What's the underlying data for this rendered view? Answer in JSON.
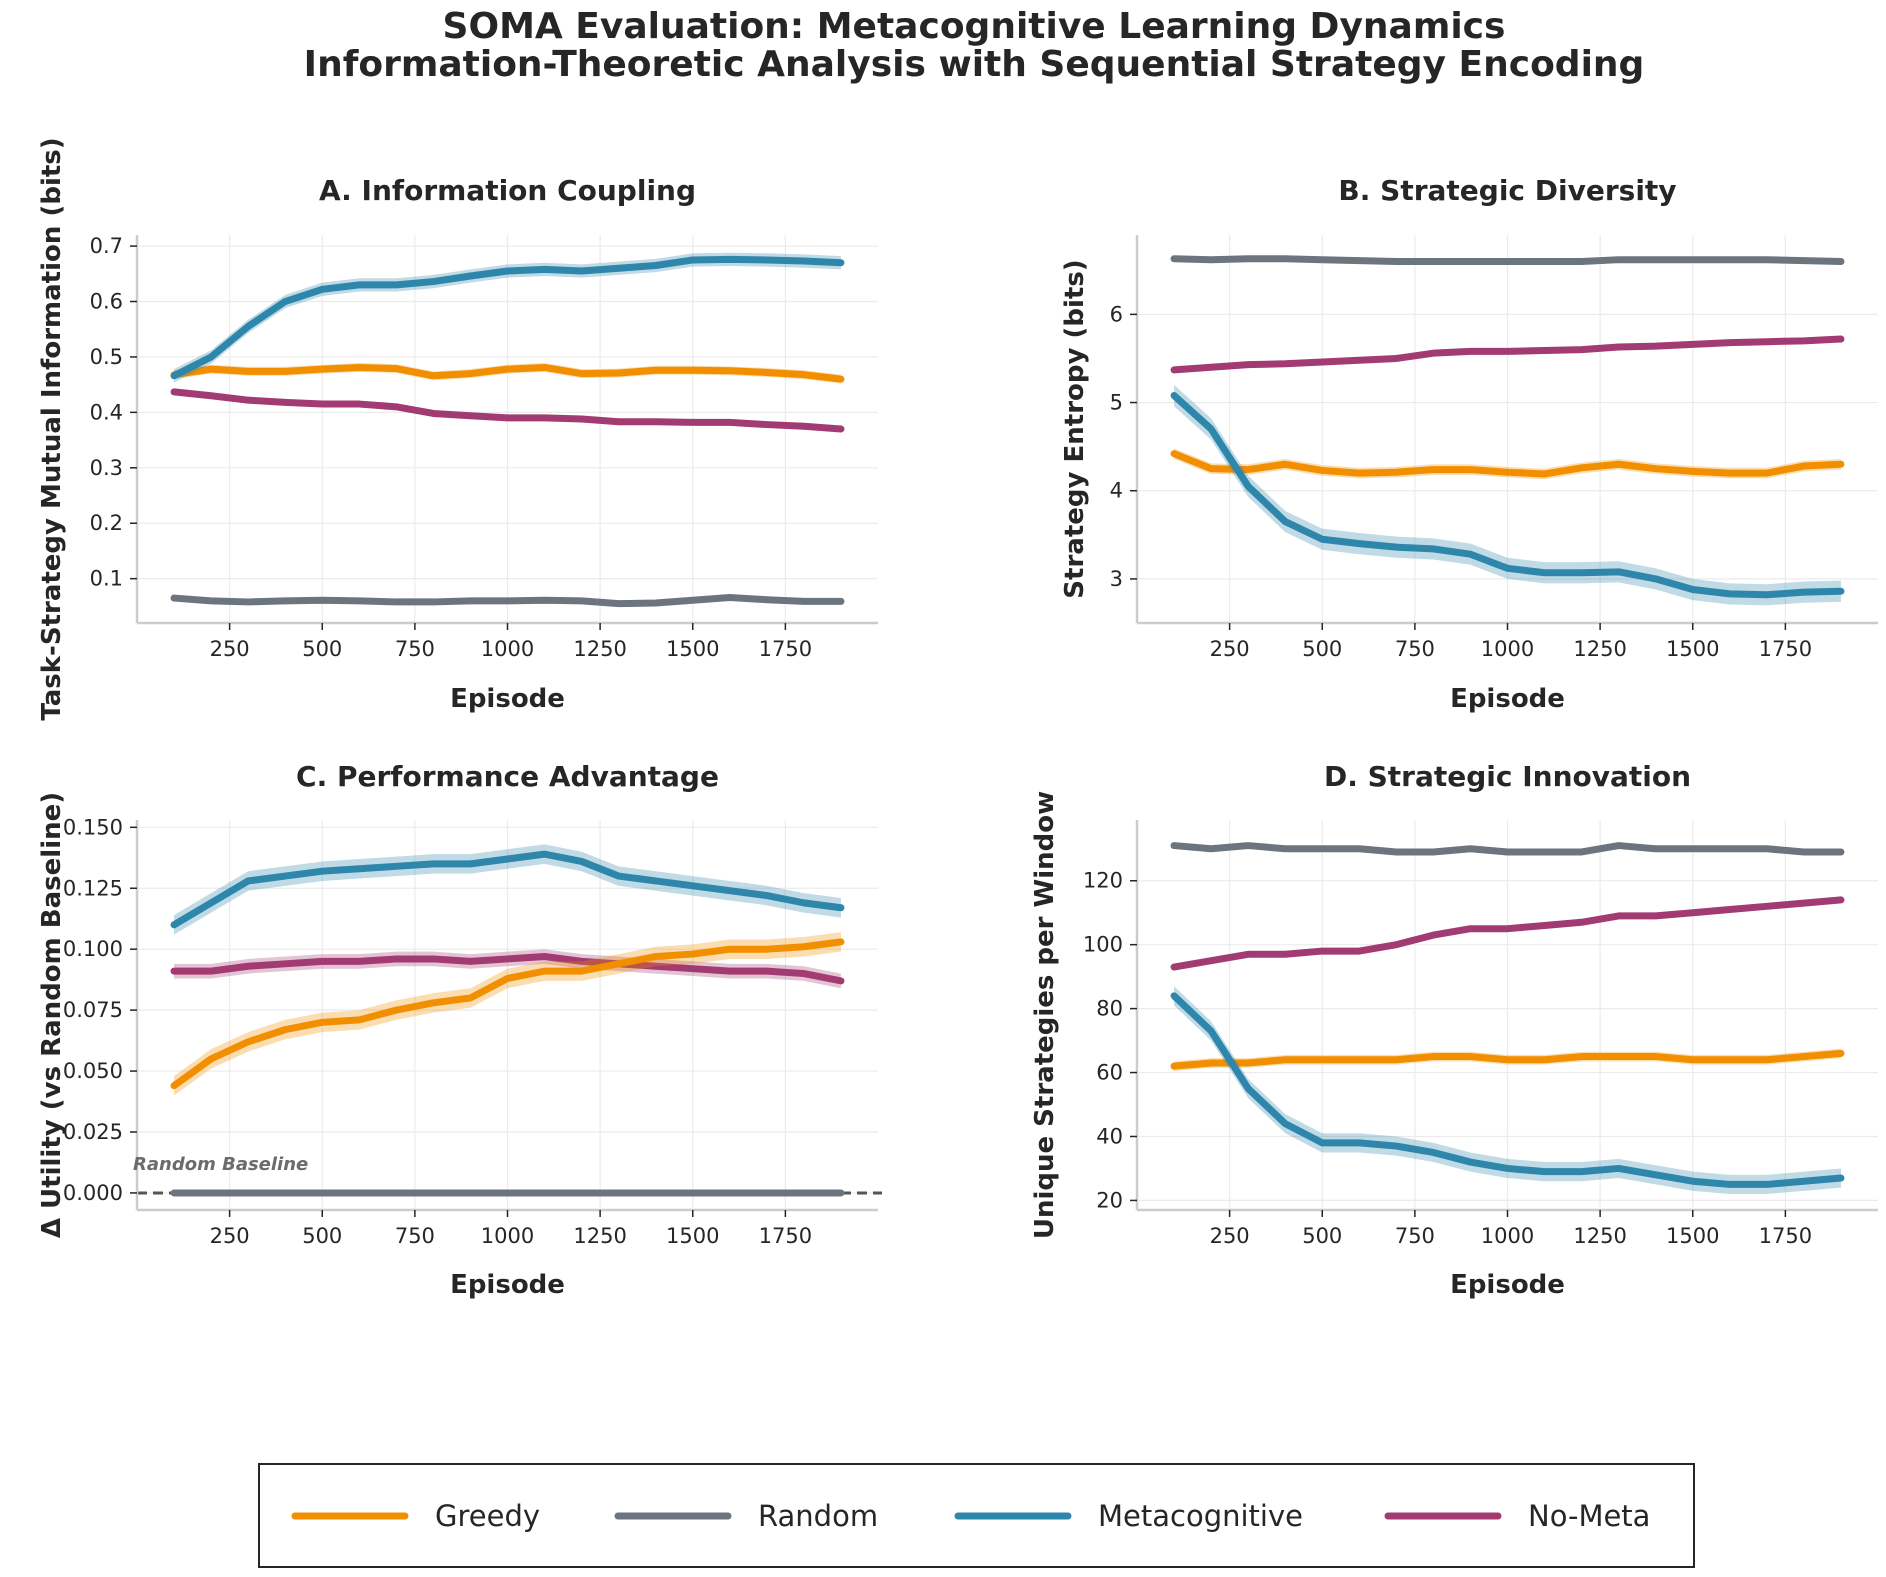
{
  "figure": {
    "title_line1": "SOMA Evaluation: Metacognitive Learning Dynamics",
    "title_line2": "Information-Theoretic Analysis with Sequential Strategy Encoding"
  },
  "legend": {
    "placement": "bottom-center",
    "entries": [
      {
        "name": "Greedy",
        "color": "#f18f01"
      },
      {
        "name": "Random",
        "color": "#6c757d"
      },
      {
        "name": "Metacognitive",
        "color": "#2e86ab"
      },
      {
        "name": "No-Meta",
        "color": "#a23b72"
      }
    ]
  },
  "chart_data": [
    {
      "type": "line",
      "title": "A. Information Coupling",
      "xlabel": "Episode",
      "ylabel": "Task-Strategy Mutual Information (bits)",
      "xlim": [
        0,
        2000
      ],
      "ylim": [
        0.02,
        0.72
      ],
      "xticks": [
        "250",
        "500",
        "750",
        "1000",
        "1250",
        "1500",
        "1750"
      ],
      "xtick_values": [
        250,
        500,
        750,
        1000,
        1250,
        1500,
        1750
      ],
      "yticks": [
        "0.1",
        "0.2",
        "0.3",
        "0.4",
        "0.5",
        "0.6",
        "0.7"
      ],
      "ytick_values": [
        0.1,
        0.2,
        0.3,
        0.4,
        0.5,
        0.6,
        0.7
      ],
      "grid": true,
      "x": [
        100,
        200,
        300,
        400,
        500,
        600,
        700,
        800,
        900,
        1000,
        1100,
        1200,
        1300,
        1400,
        1500,
        1600,
        1700,
        1800,
        1900
      ],
      "series": [
        {
          "name": "Greedy",
          "color": "#f18f01",
          "band": 0.008,
          "values": [
            0.468,
            0.478,
            0.474,
            0.474,
            0.478,
            0.481,
            0.479,
            0.466,
            0.47,
            0.478,
            0.481,
            0.47,
            0.471,
            0.476,
            0.476,
            0.475,
            0.472,
            0.468,
            0.46
          ]
        },
        {
          "name": "Random",
          "color": "#6c757d",
          "band": 0.004,
          "values": [
            0.065,
            0.06,
            0.058,
            0.06,
            0.061,
            0.06,
            0.058,
            0.058,
            0.06,
            0.06,
            0.061,
            0.06,
            0.055,
            0.056,
            0.061,
            0.066,
            0.062,
            0.059,
            0.059
          ]
        },
        {
          "name": "Metacognitive",
          "color": "#2e86ab",
          "band": 0.012,
          "values": [
            0.466,
            0.5,
            0.555,
            0.6,
            0.622,
            0.63,
            0.63,
            0.636,
            0.646,
            0.655,
            0.658,
            0.655,
            0.66,
            0.665,
            0.675,
            0.676,
            0.675,
            0.673,
            0.67
          ]
        },
        {
          "name": "No-Meta",
          "color": "#a23b72",
          "band": 0.004,
          "values": [
            0.437,
            0.43,
            0.422,
            0.418,
            0.415,
            0.415,
            0.41,
            0.398,
            0.394,
            0.39,
            0.39,
            0.388,
            0.383,
            0.383,
            0.382,
            0.382,
            0.378,
            0.375,
            0.37
          ]
        }
      ]
    },
    {
      "type": "line",
      "title": "B. Strategic Diversity",
      "xlabel": "Episode",
      "ylabel": "Strategy Entropy (bits)",
      "xlim": [
        0,
        2000
      ],
      "ylim": [
        2.5,
        6.9
      ],
      "xticks": [
        "250",
        "500",
        "750",
        "1000",
        "1250",
        "1500",
        "1750"
      ],
      "xtick_values": [
        250,
        500,
        750,
        1000,
        1250,
        1500,
        1750
      ],
      "yticks": [
        "3",
        "4",
        "5",
        "6"
      ],
      "ytick_values": [
        3,
        4,
        5,
        6
      ],
      "grid": true,
      "x": [
        100,
        200,
        300,
        400,
        500,
        600,
        700,
        800,
        900,
        1000,
        1100,
        1200,
        1300,
        1400,
        1500,
        1600,
        1700,
        1800,
        1900
      ],
      "series": [
        {
          "name": "Greedy",
          "color": "#f18f01",
          "band": 0.06,
          "values": [
            4.42,
            4.25,
            4.24,
            4.3,
            4.23,
            4.2,
            4.21,
            4.24,
            4.24,
            4.21,
            4.19,
            4.26,
            4.3,
            4.25,
            4.22,
            4.2,
            4.2,
            4.28,
            4.3
          ]
        },
        {
          "name": "Random",
          "color": "#6c757d",
          "band": 0.02,
          "values": [
            6.63,
            6.62,
            6.63,
            6.63,
            6.62,
            6.61,
            6.6,
            6.6,
            6.6,
            6.6,
            6.6,
            6.6,
            6.62,
            6.62,
            6.62,
            6.62,
            6.62,
            6.61,
            6.6
          ]
        },
        {
          "name": "Metacognitive",
          "color": "#2e86ab",
          "band": 0.12,
          "values": [
            5.08,
            4.7,
            4.05,
            3.65,
            3.45,
            3.4,
            3.36,
            3.34,
            3.28,
            3.12,
            3.07,
            3.07,
            3.08,
            3.0,
            2.88,
            2.83,
            2.82,
            2.85,
            2.86
          ]
        },
        {
          "name": "No-Meta",
          "color": "#a23b72",
          "band": 0.02,
          "values": [
            5.37,
            5.4,
            5.43,
            5.44,
            5.46,
            5.48,
            5.5,
            5.56,
            5.58,
            5.58,
            5.59,
            5.6,
            5.63,
            5.64,
            5.66,
            5.68,
            5.69,
            5.7,
            5.72
          ]
        }
      ]
    },
    {
      "type": "line",
      "title": "C. Performance Advantage",
      "xlabel": "Episode",
      "ylabel": "Δ Utility (vs Random Baseline)",
      "xlim": [
        0,
        2000
      ],
      "ylim": [
        -0.007,
        0.153
      ],
      "xticks": [
        "250",
        "500",
        "750",
        "1000",
        "1250",
        "1500",
        "1750"
      ],
      "xtick_values": [
        250,
        500,
        750,
        1000,
        1250,
        1500,
        1750
      ],
      "yticks": [
        "0.000",
        "0.025",
        "0.050",
        "0.075",
        "0.100",
        "0.125",
        "0.150"
      ],
      "ytick_values": [
        0,
        0.025,
        0.05,
        0.075,
        0.1,
        0.125,
        0.15
      ],
      "grid": true,
      "annotation": "Random Baseline",
      "baseline": 0,
      "x": [
        100,
        200,
        300,
        400,
        500,
        600,
        700,
        800,
        900,
        1000,
        1100,
        1200,
        1300,
        1400,
        1500,
        1600,
        1700,
        1800,
        1900
      ],
      "series": [
        {
          "name": "Greedy",
          "color": "#f18f01",
          "band": 0.004,
          "values": [
            0.044,
            0.055,
            0.062,
            0.067,
            0.07,
            0.071,
            0.075,
            0.078,
            0.08,
            0.088,
            0.091,
            0.091,
            0.094,
            0.097,
            0.098,
            0.1,
            0.1,
            0.101,
            0.103
          ]
        },
        {
          "name": "Random",
          "color": "#6c757d",
          "band": 0.0,
          "values": [
            0,
            0,
            0,
            0,
            0,
            0,
            0,
            0,
            0,
            0,
            0,
            0,
            0,
            0,
            0,
            0,
            0,
            0,
            0
          ]
        },
        {
          "name": "Metacognitive",
          "color": "#2e86ab",
          "band": 0.004,
          "values": [
            0.11,
            0.119,
            0.128,
            0.13,
            0.132,
            0.133,
            0.134,
            0.135,
            0.135,
            0.137,
            0.139,
            0.136,
            0.13,
            0.128,
            0.126,
            0.124,
            0.122,
            0.119,
            0.117
          ]
        },
        {
          "name": "No-Meta",
          "color": "#a23b72",
          "band": 0.003,
          "values": [
            0.091,
            0.091,
            0.093,
            0.094,
            0.095,
            0.095,
            0.096,
            0.096,
            0.095,
            0.096,
            0.097,
            0.095,
            0.094,
            0.093,
            0.092,
            0.091,
            0.091,
            0.09,
            0.087
          ]
        }
      ]
    },
    {
      "type": "line",
      "title": "D. Strategic Innovation",
      "xlabel": "Episode",
      "ylabel": "Unique Strategies per Window",
      "xlim": [
        0,
        2000
      ],
      "ylim": [
        17,
        139
      ],
      "xticks": [
        "250",
        "500",
        "750",
        "1000",
        "1250",
        "1500",
        "1750"
      ],
      "xtick_values": [
        250,
        500,
        750,
        1000,
        1250,
        1500,
        1750
      ],
      "yticks": [
        "20",
        "40",
        "60",
        "80",
        "100",
        "120"
      ],
      "ytick_values": [
        20,
        40,
        60,
        80,
        100,
        120
      ],
      "grid": true,
      "x": [
        100,
        200,
        300,
        400,
        500,
        600,
        700,
        800,
        900,
        1000,
        1100,
        1200,
        1300,
        1400,
        1500,
        1600,
        1700,
        1800,
        1900
      ],
      "series": [
        {
          "name": "Greedy",
          "color": "#f18f01",
          "band": 1.5,
          "values": [
            62,
            63,
            63,
            64,
            64,
            64,
            64,
            65,
            65,
            64,
            64,
            65,
            65,
            65,
            64,
            64,
            64,
            65,
            66
          ]
        },
        {
          "name": "Random",
          "color": "#6c757d",
          "band": 1.0,
          "values": [
            131,
            130,
            131,
            130,
            130,
            130,
            129,
            129,
            130,
            129,
            129,
            129,
            131,
            130,
            130,
            130,
            130,
            129,
            129
          ]
        },
        {
          "name": "Metacognitive",
          "color": "#2e86ab",
          "band": 3.0,
          "values": [
            84,
            73,
            55,
            44,
            38,
            38,
            37,
            35,
            32,
            30,
            29,
            29,
            30,
            28,
            26,
            25,
            25,
            26,
            27
          ]
        },
        {
          "name": "No-Meta",
          "color": "#a23b72",
          "band": 1.0,
          "values": [
            93,
            95,
            97,
            97,
            98,
            98,
            100,
            103,
            105,
            105,
            106,
            107,
            109,
            109,
            110,
            111,
            112,
            113,
            114
          ]
        }
      ]
    }
  ]
}
